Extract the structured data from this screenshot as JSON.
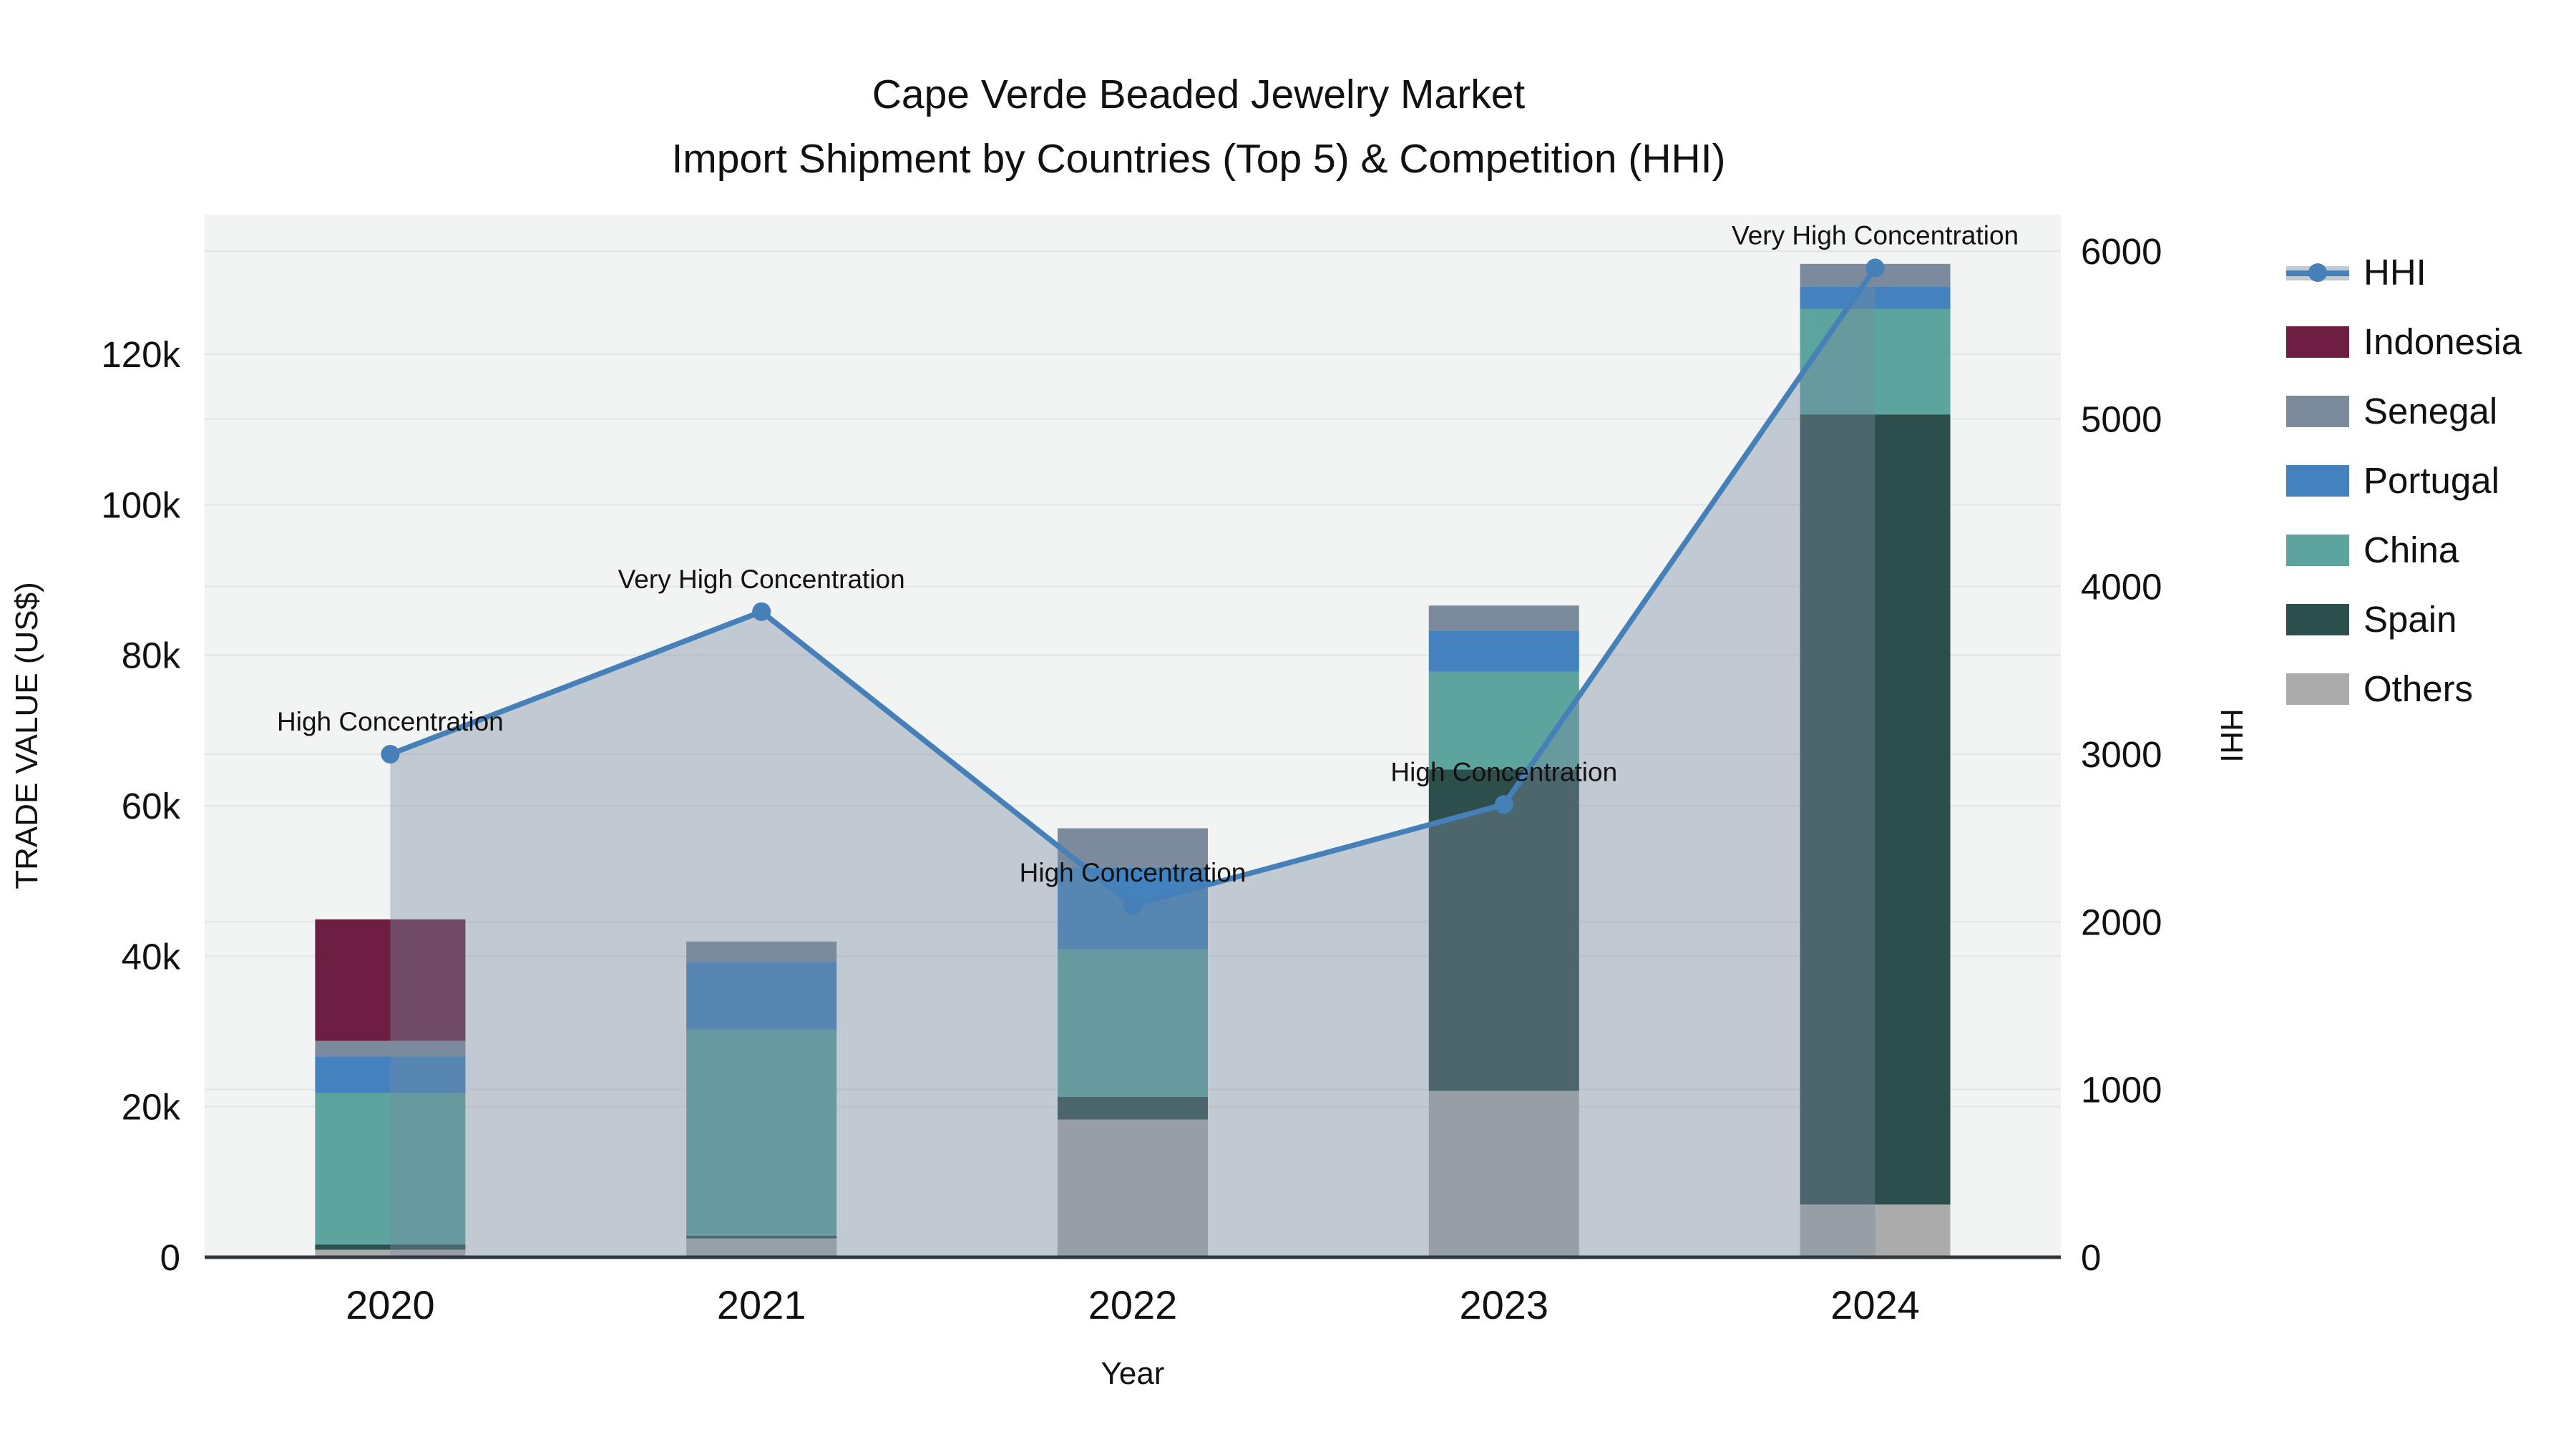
{
  "title": {
    "line1": "Cape Verde Beaded Jewelry Market",
    "line2": "Import Shipment by Countries (Top 5) & Competition (HHI)"
  },
  "axes": {
    "y_left_title": "TRADE VALUE (US$)",
    "y_right_title": "HHI",
    "x_title": "Year",
    "y_left_tick_values": [
      0,
      20000,
      40000,
      60000,
      80000,
      100000,
      120000
    ],
    "y_left_tick_labels": [
      "0",
      "20k",
      "40k",
      "60k",
      "80k",
      "100k",
      "120k"
    ],
    "y_right_tick_values": [
      0,
      1000,
      2000,
      3000,
      4000,
      5000,
      6000
    ],
    "y_right_tick_labels": [
      "0",
      "1000",
      "2000",
      "3000",
      "4000",
      "5000",
      "6000"
    ],
    "x_tick_labels": [
      "2020",
      "2021",
      "2022",
      "2023",
      "2024"
    ]
  },
  "colors": {
    "plot_bg": "#f2f3f3",
    "gridline": "#e4e7ea",
    "axis_line": "#33383d",
    "text": "#111111",
    "hhi_line": "#4580b9",
    "area_fill": "rgba(120,140,160,0.40)",
    "area_fill_solid": "#c1c9d1"
  },
  "legend": {
    "items": [
      {
        "label": "HHI",
        "type": "line",
        "color": "#4580b9"
      },
      {
        "label": "Indonesia",
        "type": "swatch",
        "color": "#6d1e41"
      },
      {
        "label": "Senegal",
        "type": "swatch",
        "color": "#7b8a9c"
      },
      {
        "label": "Portugal",
        "type": "swatch",
        "color": "#4382be"
      },
      {
        "label": "China",
        "type": "swatch",
        "color": "#5da39e"
      },
      {
        "label": "Spain",
        "type": "swatch",
        "color": "#2d4f4b"
      },
      {
        "label": "Others",
        "type": "swatch",
        "color": "#ababab"
      }
    ]
  },
  "chart_data": {
    "type": "bar+line",
    "title": "Cape Verde Beaded Jewelry Market — Import Shipment by Countries (Top 5) & Competition (HHI)",
    "xlabel": "Year",
    "ylabel_left": "TRADE VALUE (US$)",
    "ylabel_right": "HHI",
    "y_left_range": [
      0,
      138500
    ],
    "y_right_range": [
      0,
      6210
    ],
    "grid": true,
    "legend_position": "right",
    "categories": [
      "2020",
      "2021",
      "2022",
      "2023",
      "2024"
    ],
    "stack_order_bottom_to_top": [
      "Others",
      "Spain",
      "China",
      "Portugal",
      "Senegal",
      "Indonesia"
    ],
    "series": [
      {
        "name": "Indonesia",
        "color": "#6d1e41",
        "values": [
          16150,
          0,
          0,
          0,
          0
        ]
      },
      {
        "name": "Senegal",
        "color": "#7b8a9c",
        "values": [
          2050,
          2700,
          5200,
          3400,
          3000
        ]
      },
      {
        "name": "Portugal",
        "color": "#4382be",
        "values": [
          4900,
          9000,
          10900,
          5400,
          3000
        ]
      },
      {
        "name": "China",
        "color": "#5da39e",
        "values": [
          20100,
          27400,
          19600,
          13000,
          14000
        ]
      },
      {
        "name": "Spain",
        "color": "#2d4f4b",
        "values": [
          700,
          350,
          3000,
          42700,
          105000
        ]
      },
      {
        "name": "Others",
        "color": "#ababab",
        "values": [
          1000,
          2500,
          18300,
          22100,
          7000
        ]
      }
    ],
    "bar_totals": [
      44900,
      41950,
      57000,
      86600,
      132000
    ],
    "hhi": {
      "name": "HHI",
      "color": "#4580b9",
      "values": [
        3000,
        3850,
        2100,
        2700,
        5900
      ],
      "annotations": [
        "High Concentration",
        "Very High Concentration",
        "High Concentration",
        "High Concentration",
        "Very High Concentration"
      ]
    }
  }
}
